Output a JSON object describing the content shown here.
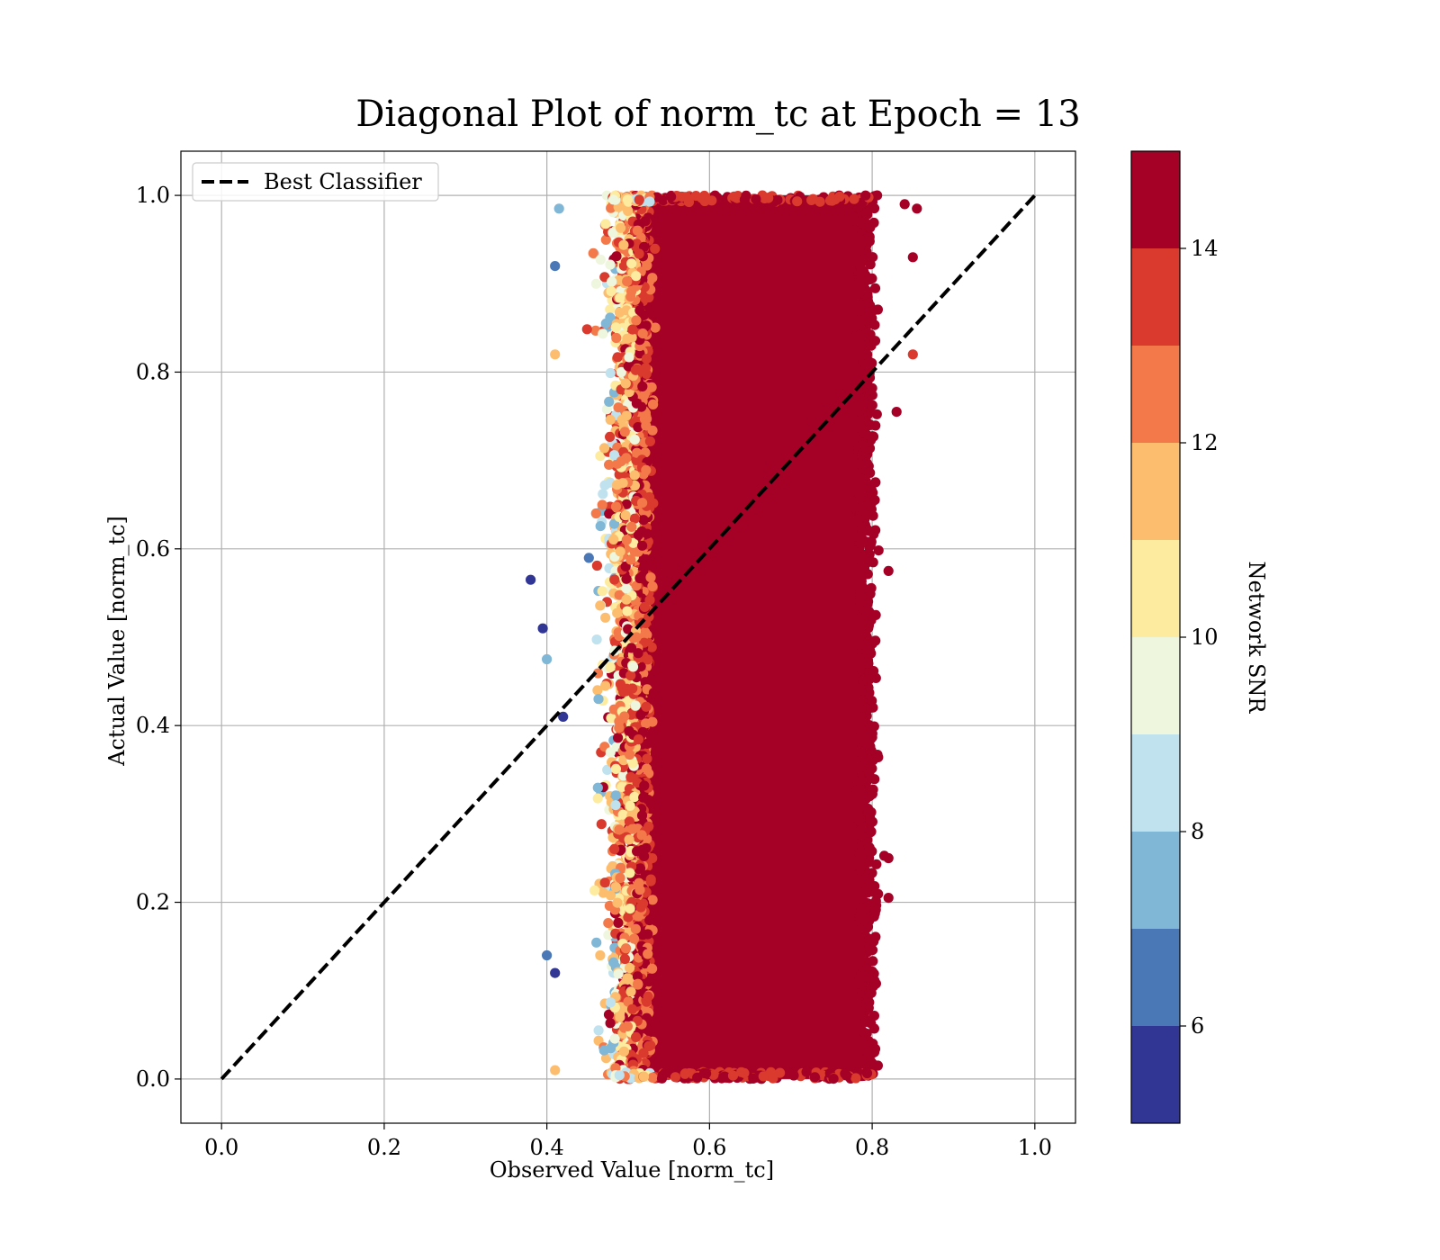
{
  "chart_data": {
    "type": "scatter",
    "title": "Diagonal Plot of norm_tc at Epoch = 13",
    "xlabel": "Observed Value [norm_tc]",
    "ylabel": "Actual Value [norm_tc]",
    "xlim": [
      -0.05,
      1.05
    ],
    "ylim": [
      -0.05,
      1.05
    ],
    "xticks": [
      "0.0",
      "0.2",
      "0.4",
      "0.6",
      "0.8",
      "1.0"
    ],
    "yticks": [
      "0.0",
      "0.2",
      "0.4",
      "0.6",
      "0.8",
      "1.0"
    ],
    "grid": true,
    "legend": {
      "position": "upper-left",
      "entries": [
        "Best Classifier"
      ]
    },
    "series": [
      {
        "name": "Best Classifier",
        "kind": "line",
        "style": "dashed",
        "color": "#000000",
        "x": [
          0.0,
          1.0
        ],
        "y": [
          0.0,
          1.0
        ]
      },
      {
        "kind": "scatter",
        "color_by": "Network SNR",
        "point_count_shown": "dense (tens of thousands)",
        "x_range_core": [
          0.52,
          0.79
        ],
        "x_range_spread": [
          0.43,
          0.85
        ],
        "y_range": [
          0.0,
          1.0
        ],
        "outliers": [
          {
            "x": 0.38,
            "y": 0.565,
            "snr": 5.5
          },
          {
            "x": 0.395,
            "y": 0.51,
            "snr": 5.5
          },
          {
            "x": 0.4,
            "y": 0.475,
            "snr": 7
          },
          {
            "x": 0.41,
            "y": 0.82,
            "snr": 11
          },
          {
            "x": 0.41,
            "y": 0.92,
            "snr": 6.5
          },
          {
            "x": 0.41,
            "y": 0.01,
            "snr": 11.5
          },
          {
            "x": 0.4,
            "y": 0.14,
            "snr": 6.5
          },
          {
            "x": 0.41,
            "y": 0.12,
            "snr": 5.5
          },
          {
            "x": 0.415,
            "y": 0.985,
            "snr": 7.5
          },
          {
            "x": 0.42,
            "y": 0.41,
            "snr": 5.5
          },
          {
            "x": 0.85,
            "y": 0.82,
            "snr": 13
          },
          {
            "x": 0.855,
            "y": 0.985,
            "snr": 14.5
          },
          {
            "x": 0.84,
            "y": 0.99,
            "snr": 14.5
          },
          {
            "x": 0.85,
            "y": 0.93,
            "snr": 14.5
          },
          {
            "x": 0.82,
            "y": 0.575,
            "snr": 14.5
          },
          {
            "x": 0.83,
            "y": 0.755,
            "snr": 14.5
          },
          {
            "x": 0.82,
            "y": 0.205,
            "snr": 14.5
          },
          {
            "x": 0.82,
            "y": 0.25,
            "snr": 14.5
          }
        ]
      }
    ],
    "colorbar": {
      "label": "Network SNR",
      "range": [
        5,
        15
      ],
      "ticks": [
        "6",
        "8",
        "10",
        "12",
        "14"
      ],
      "bins": [
        {
          "from": 5,
          "to": 6,
          "color": "#313695"
        },
        {
          "from": 6,
          "to": 7,
          "color": "#4a78b6"
        },
        {
          "from": 7,
          "to": 8,
          "color": "#80b6d6"
        },
        {
          "from": 8,
          "to": 9,
          "color": "#c0e2ee"
        },
        {
          "from": 9,
          "to": 10,
          "color": "#eef6de"
        },
        {
          "from": 10,
          "to": 11,
          "color": "#fdeba0"
        },
        {
          "from": 11,
          "to": 12,
          "color": "#fcbe6e"
        },
        {
          "from": 12,
          "to": 13,
          "color": "#f4794a"
        },
        {
          "from": 13,
          "to": 14,
          "color": "#d93a2d"
        },
        {
          "from": 14,
          "to": 15,
          "color": "#a50026"
        }
      ]
    }
  }
}
